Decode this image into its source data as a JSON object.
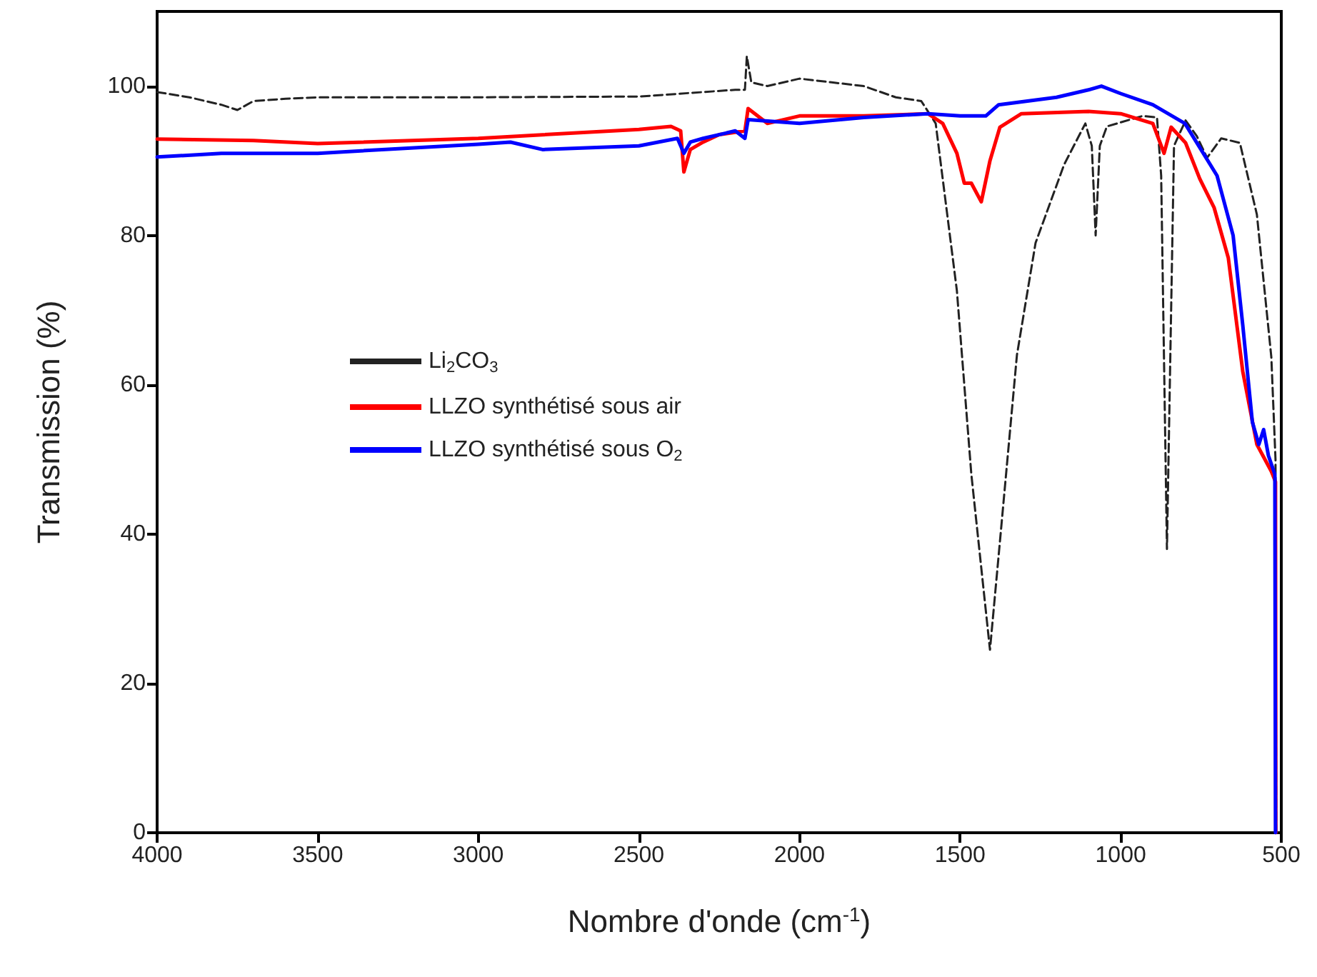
{
  "chart_data": {
    "type": "line",
    "xlabel": "Nombre d'onde (cm$^{-1}$)",
    "ylabel": "Transmission (%)",
    "xlim": [
      4000,
      500
    ],
    "xticks": [
      4000,
      3500,
      3000,
      2500,
      2000,
      1500,
      1000,
      500
    ],
    "ylim": [
      0,
      110
    ],
    "yticks": [
      0,
      20,
      40,
      60,
      80,
      100
    ],
    "grid": false,
    "legend": "left",
    "marker": "none",
    "series": [
      {
        "name": "Li$_{2}$CO$_{3}$",
        "color": "#222222",
        "line_style": "dashed",
        "x": [
          4000,
          3900,
          3800,
          3750,
          3700,
          3600,
          3500,
          3000,
          2500,
          2200,
          2170,
          2164,
          2150,
          2100,
          2000,
          1900,
          1800,
          1700,
          1621,
          1576,
          1510,
          1465,
          1407,
          1376,
          1323,
          1265,
          1176,
          1110,
          1090,
          1078,
          1065,
          1043,
          932,
          887,
          874,
          856,
          834,
          798,
          763,
          731,
          687,
          629,
          576,
          531,
          518,
          516
        ],
        "values": [
          99.2,
          98.5,
          97.5,
          96.8,
          98,
          98.3,
          98.5,
          98.5,
          98.6,
          99.5,
          99.5,
          104,
          100.5,
          100,
          101,
          100.5,
          100,
          98.5,
          98,
          95,
          72.6,
          48,
          24.5,
          39,
          64,
          79,
          89.5,
          95,
          92,
          80,
          92,
          94.6,
          96,
          95.8,
          88,
          38,
          92,
          95.4,
          93.3,
          90.4,
          93,
          92.4,
          82.8,
          63.7,
          50,
          0
        ]
      },
      {
        "name": "LLZO synthétisé sous air",
        "color": "#ff0000",
        "line_style": "solid",
        "x": [
          4000,
          3700,
          3500,
          3000,
          2500,
          2400,
          2370,
          2360,
          2340,
          2300,
          2250,
          2170,
          2160,
          2100,
          2000,
          1800,
          1600,
          1554,
          1510,
          1487,
          1465,
          1434,
          1407,
          1376,
          1309,
          1100,
          1000,
          900,
          865,
          843,
          798,
          754,
          709,
          665,
          620,
          576,
          531,
          518,
          517
        ],
        "values": [
          92.9,
          92.7,
          92.3,
          93,
          94.2,
          94.6,
          94,
          88.5,
          91.5,
          92.5,
          93.5,
          94,
          97,
          95,
          96,
          96,
          96.3,
          95,
          91,
          87,
          87,
          84.5,
          90,
          94.5,
          96.3,
          96.6,
          96.3,
          95,
          91,
          94.5,
          92.4,
          87.6,
          83.7,
          77,
          61.8,
          52,
          48.4,
          47,
          0
        ]
      },
      {
        "name": "LLZO synthétisé sous O$_{2}$",
        "color": "#0000ff",
        "line_style": "solid",
        "x": [
          4000,
          3800,
          3500,
          3000,
          2900,
          2800,
          2500,
          2380,
          2360,
          2340,
          2300,
          2200,
          2170,
          2160,
          2000,
          1800,
          1600,
          1500,
          1420,
          1380,
          1200,
          1100,
          1060,
          1000,
          900,
          800,
          750,
          700,
          650,
          620,
          590,
          570,
          555,
          540,
          520,
          518
        ],
        "values": [
          90.5,
          91,
          91,
          92.2,
          92.5,
          91.5,
          92,
          93,
          91,
          92.5,
          93,
          94,
          93,
          95.5,
          95,
          95.8,
          96.3,
          96,
          96,
          97.5,
          98.5,
          99.5,
          100,
          99,
          97.5,
          95,
          91.5,
          88,
          80,
          68,
          55,
          52,
          54,
          50.5,
          48,
          0
        ]
      }
    ]
  }
}
